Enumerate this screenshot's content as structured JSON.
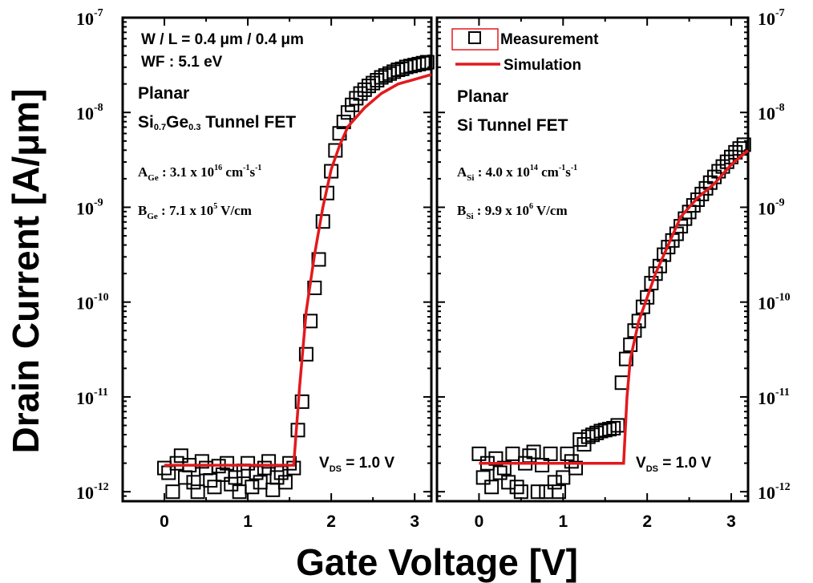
{
  "chart_data": {
    "type": "scatter",
    "ylabel": "Drain Current [A/μm]",
    "xlabel": "Gate Voltage [V]",
    "y_scale": "log",
    "xlim": [
      -0.5,
      3.2
    ],
    "ylim_exp": [
      -12.1,
      -7.0
    ],
    "x_ticks": [
      "0",
      "1",
      "2",
      "3"
    ],
    "y_tick_labels": [
      {
        "base": "10",
        "exp": "-7"
      },
      {
        "base": "10",
        "exp": "-8"
      },
      {
        "base": "10",
        "exp": "-9"
      },
      {
        "base": "10",
        "exp": "-10"
      },
      {
        "base": "10",
        "exp": "-11"
      },
      {
        "base": "10",
        "exp": "-12"
      }
    ],
    "legend": {
      "measurement": "Measurement",
      "simulation": "Simulation"
    },
    "panels": [
      {
        "name": "SiGe",
        "dims": "W / L = 0.4 μm / 0.4 μm",
        "wf": "WF : 5.1 eV",
        "title1": "Planar",
        "title2_main": "Si",
        "title2_sub1": "0.7",
        "title2_mid": "Ge",
        "title2_sub2": "0.3",
        "title2_tail": " Tunnel FET",
        "a_sym": "A",
        "a_sub": "Ge",
        "a_text": " : 3.1 x 10",
        "a_exp": "16",
        "a_unit": " cm",
        "a_e1": "-1",
        "a_s": "s",
        "a_e2": "-1",
        "b_sym": "B",
        "b_sub": "Ge",
        "b_text": " : 7.1 x 10",
        "b_exp": "5",
        "b_unit": " V/cm",
        "vds_v": "V",
        "vds_sub": "DS",
        "vds_rest": " = 1.0 V",
        "measurement": {
          "x": [
            0.0,
            0.05,
            0.1,
            0.15,
            0.2,
            0.25,
            0.3,
            0.35,
            0.4,
            0.45,
            0.5,
            0.55,
            0.6,
            0.65,
            0.7,
            0.75,
            0.8,
            0.85,
            0.9,
            0.95,
            1.0,
            1.05,
            1.1,
            1.15,
            1.2,
            1.25,
            1.3,
            1.35,
            1.4,
            1.45,
            1.5,
            1.55,
            1.6,
            1.65,
            1.7,
            1.75,
            1.8,
            1.85,
            1.9,
            1.95,
            2.0,
            2.05,
            2.1,
            2.15,
            2.2,
            2.25,
            2.3,
            2.35,
            2.4,
            2.45,
            2.5,
            2.55,
            2.6,
            2.65,
            2.7,
            2.75,
            2.8,
            2.85,
            2.9,
            2.95,
            3.0,
            3.05,
            3.1,
            3.15
          ],
          "log10_y": [
            -11.75,
            -11.8,
            -12.0,
            -11.7,
            -11.62,
            -11.85,
            -11.72,
            -11.9,
            -12.0,
            -11.68,
            -11.75,
            -11.88,
            -11.95,
            -11.73,
            -11.82,
            -11.7,
            -11.92,
            -11.85,
            -12.0,
            -11.78,
            -11.7,
            -11.95,
            -11.8,
            -11.9,
            -11.75,
            -11.68,
            -11.98,
            -11.85,
            -11.8,
            -11.9,
            -11.7,
            -11.75,
            -11.35,
            -11.05,
            -10.55,
            -10.2,
            -9.85,
            -9.55,
            -9.15,
            -8.85,
            -8.62,
            -8.4,
            -8.22,
            -8.1,
            -8.0,
            -7.92,
            -7.85,
            -7.8,
            -7.76,
            -7.72,
            -7.69,
            -7.66,
            -7.63,
            -7.61,
            -7.59,
            -7.57,
            -7.55,
            -7.54,
            -7.52,
            -7.51,
            -7.5,
            -7.49,
            -7.48,
            -7.47
          ]
        },
        "simulation": {
          "x": [
            0.0,
            1.55,
            1.62,
            1.7,
            1.8,
            1.9,
            2.0,
            2.1,
            2.2,
            2.4,
            2.6,
            2.8,
            3.0,
            3.2
          ],
          "log10_y": [
            -11.72,
            -11.72,
            -10.9,
            -10.1,
            -9.5,
            -9.0,
            -8.6,
            -8.35,
            -8.15,
            -7.95,
            -7.8,
            -7.7,
            -7.65,
            -7.6
          ]
        }
      },
      {
        "name": "Si",
        "title1": "Planar",
        "title2": "Si Tunnel FET",
        "a_sym": "A",
        "a_sub": "Si",
        "a_text": " : 4.0 x 10",
        "a_exp": "14",
        "a_unit": " cm",
        "a_e1": "-1",
        "a_s": "s",
        "a_e2": "-1",
        "b_sym": "B",
        "b_sub": "Si",
        "b_text": " : 9.9 x 10",
        "b_exp": "6",
        "b_unit": " V/cm",
        "vds_v": "V",
        "vds_sub": "DS",
        "vds_rest": " = 1.0 V",
        "measurement": {
          "x": [
            0.0,
            0.05,
            0.1,
            0.15,
            0.2,
            0.25,
            0.3,
            0.35,
            0.4,
            0.45,
            0.5,
            0.55,
            0.6,
            0.65,
            0.7,
            0.75,
            0.8,
            0.85,
            0.9,
            0.95,
            1.0,
            1.05,
            1.1,
            1.15,
            1.2,
            1.25,
            1.3,
            1.35,
            1.4,
            1.45,
            1.5,
            1.55,
            1.6,
            1.65,
            1.7,
            1.75,
            1.8,
            1.85,
            1.9,
            1.95,
            2.0,
            2.05,
            2.1,
            2.15,
            2.2,
            2.25,
            2.3,
            2.35,
            2.4,
            2.45,
            2.5,
            2.55,
            2.6,
            2.65,
            2.7,
            2.75,
            2.8,
            2.85,
            2.9,
            2.95,
            3.0,
            3.05,
            3.1,
            3.15
          ],
          "log10_y": [
            -11.6,
            -11.85,
            -11.7,
            -11.95,
            -11.65,
            -11.8,
            -11.75,
            -11.9,
            -11.6,
            -11.95,
            -12.0,
            -11.7,
            -11.62,
            -11.58,
            -12.0,
            -11.72,
            -12.0,
            -11.6,
            -11.9,
            -12.0,
            -11.85,
            -11.6,
            -11.68,
            -11.75,
            -11.45,
            -11.5,
            -11.42,
            -11.4,
            -11.38,
            -11.36,
            -11.35,
            -11.34,
            -11.33,
            -11.3,
            -10.85,
            -10.6,
            -10.45,
            -10.3,
            -10.2,
            -10.05,
            -9.95,
            -9.8,
            -9.7,
            -9.62,
            -9.5,
            -9.42,
            -9.35,
            -9.28,
            -9.2,
            -9.12,
            -9.05,
            -8.98,
            -8.92,
            -8.86,
            -8.8,
            -8.74,
            -8.68,
            -8.62,
            -8.57,
            -8.52,
            -8.47,
            -8.42,
            -8.38,
            -8.34
          ]
        },
        "simulation": {
          "x": [
            0.0,
            1.72,
            1.76,
            1.8,
            1.9,
            2.0,
            2.1,
            2.2,
            2.3,
            2.4,
            2.6,
            2.8,
            3.0,
            3.2
          ],
          "log10_y": [
            -11.7,
            -11.7,
            -11.0,
            -10.6,
            -10.2,
            -9.95,
            -9.7,
            -9.5,
            -9.3,
            -9.1,
            -8.9,
            -8.75,
            -8.55,
            -8.4
          ]
        }
      }
    ]
  }
}
